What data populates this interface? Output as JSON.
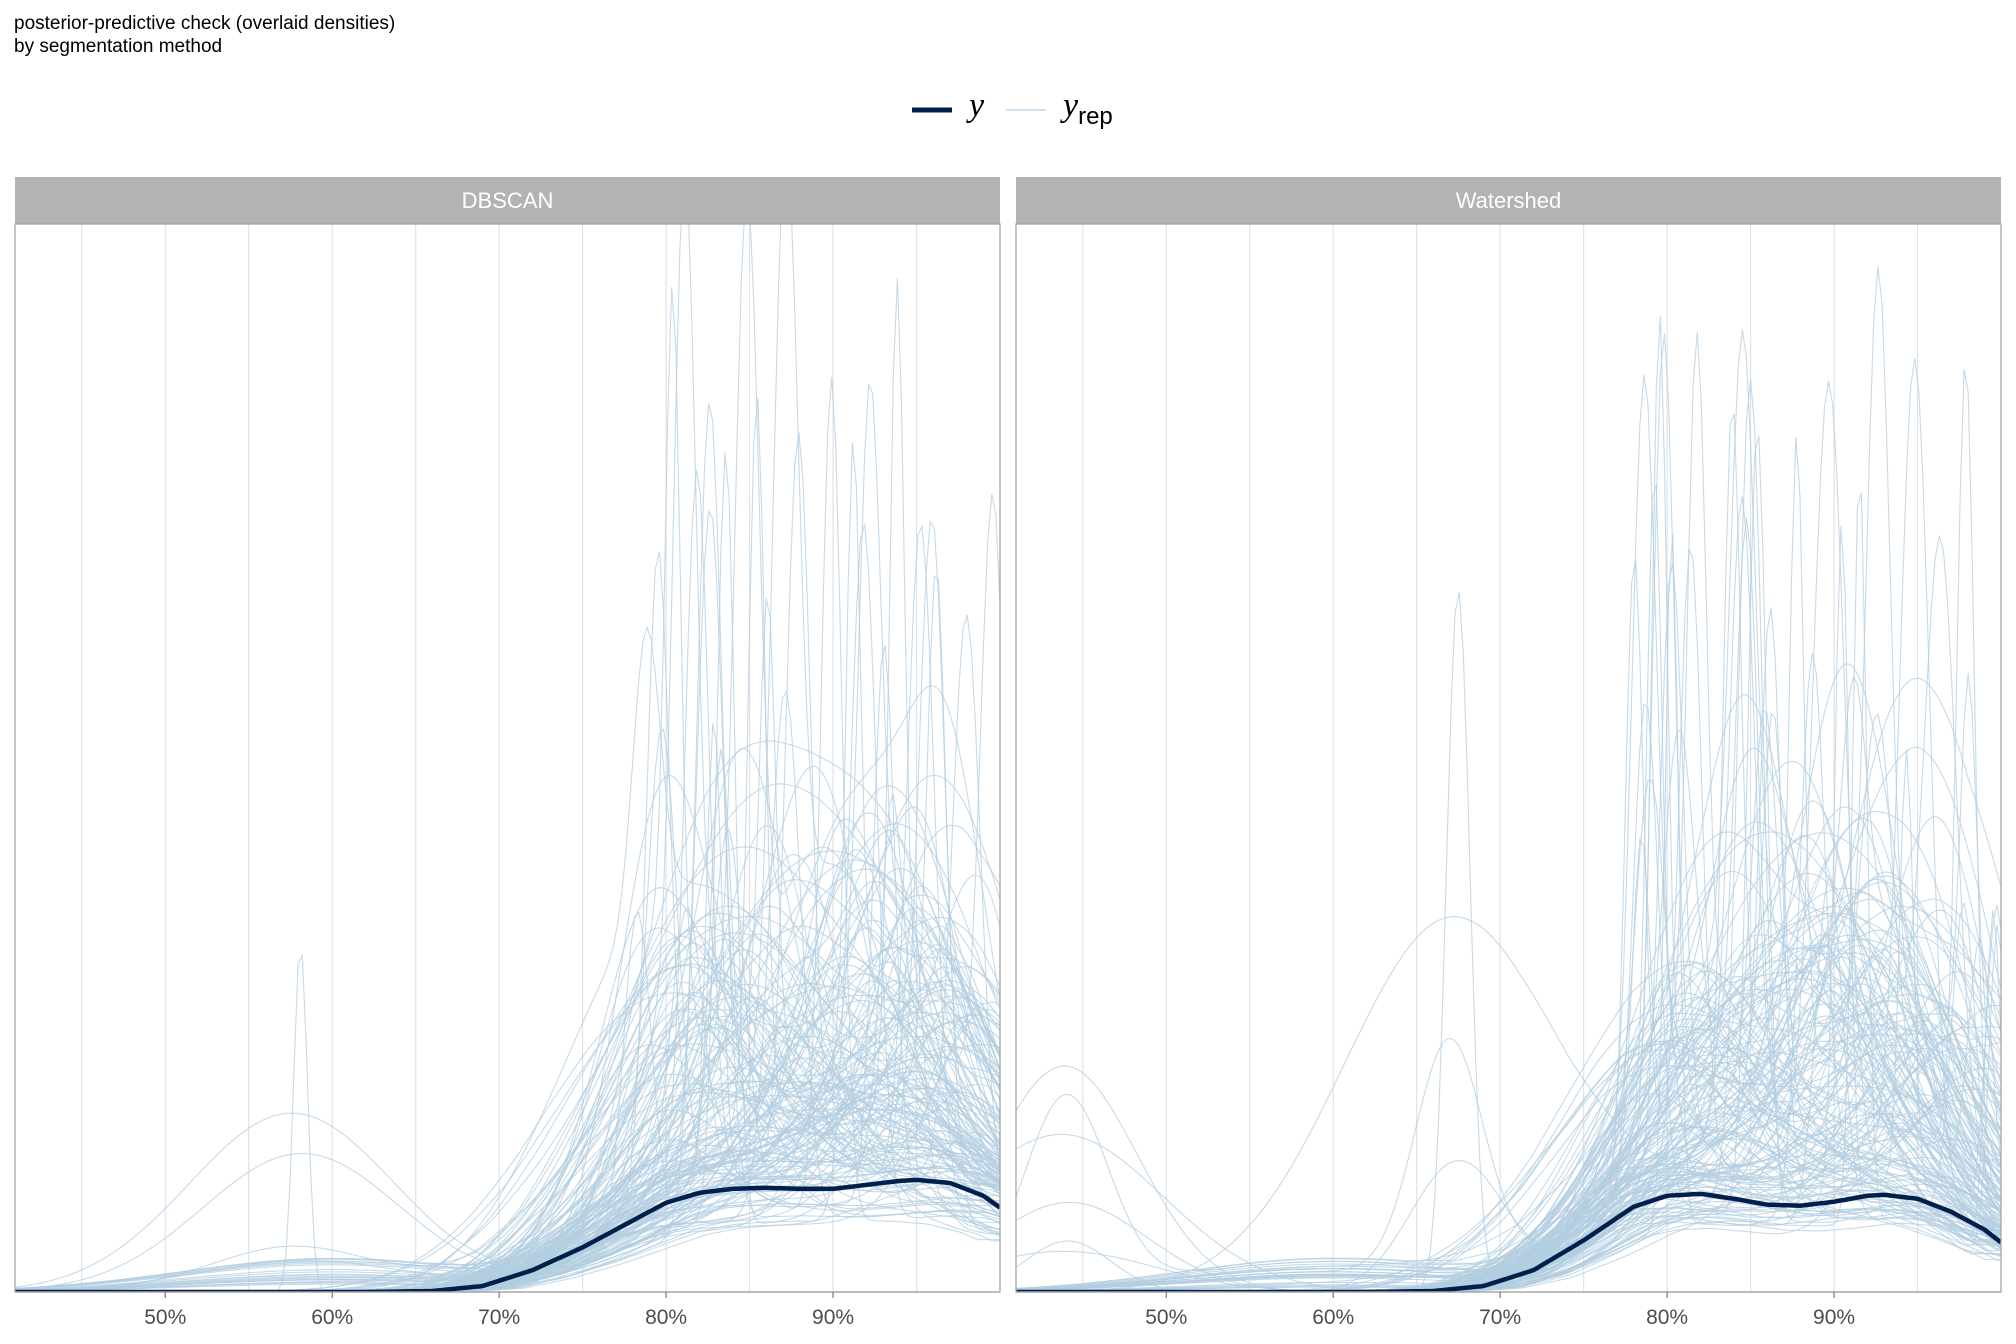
{
  "title_lines": [
    "posterior-predictive check (overlaid densities)",
    "by segmentation method"
  ],
  "colors": {
    "y": "#011f4b",
    "yrep": "#b3cde0",
    "strip": "#b3b3b3",
    "grid": "#dde3ea",
    "border": "#a6a6a6"
  },
  "chart_data": {
    "type": "line",
    "title": "posterior-predictive check (overlaid densities)",
    "subtitle": "by segmentation method",
    "xlabel": "",
    "ylabel": "",
    "x_ticks": [
      0.5,
      0.6,
      0.7,
      0.8,
      0.9
    ],
    "x_tick_labels": [
      "50%",
      "60%",
      "70%",
      "80%",
      "90%"
    ],
    "xlim": [
      0.41,
      1.0
    ],
    "ylim": [
      0,
      1
    ],
    "y_axis_shown": false,
    "grid": true,
    "legend": {
      "position": "top",
      "entries": [
        {
          "symbol": "y",
          "sub": ""
        },
        {
          "symbol": "y",
          "sub": "rep"
        }
      ]
    },
    "facets": [
      {
        "label": "DBSCAN",
        "y": {
          "x": [
            0.41,
            0.62,
            0.66,
            0.69,
            0.72,
            0.75,
            0.78,
            0.8,
            0.82,
            0.84,
            0.86,
            0.88,
            0.9,
            0.92,
            0.94,
            0.95,
            0.97,
            0.99,
            1.0
          ],
          "values": [
            0,
            0,
            0.001,
            0.006,
            0.022,
            0.045,
            0.072,
            0.09,
            0.1,
            0.104,
            0.105,
            0.104,
            0.104,
            0.108,
            0.112,
            0.113,
            0.11,
            0.097,
            0.085
          ]
        },
        "yrep_peaks": [
          0.81,
          0.85,
          0.88,
          0.92,
          0.94,
          0.98,
          0.58,
          0.95,
          0.97,
          0.9
        ]
      },
      {
        "label": "Watershed",
        "y": {
          "x": [
            0.41,
            0.62,
            0.66,
            0.69,
            0.72,
            0.75,
            0.78,
            0.8,
            0.82,
            0.84,
            0.86,
            0.88,
            0.9,
            0.92,
            0.93,
            0.95,
            0.97,
            0.99,
            1.0
          ],
          "values": [
            0,
            0,
            0.001,
            0.006,
            0.022,
            0.052,
            0.086,
            0.097,
            0.099,
            0.094,
            0.088,
            0.087,
            0.091,
            0.097,
            0.098,
            0.094,
            0.081,
            0.063,
            0.05
          ]
        },
        "yrep_peaks": [
          0.81,
          0.89,
          0.9,
          0.94,
          0.96,
          0.67,
          0.44,
          0.91,
          0.93,
          0.86
        ]
      }
    ]
  }
}
